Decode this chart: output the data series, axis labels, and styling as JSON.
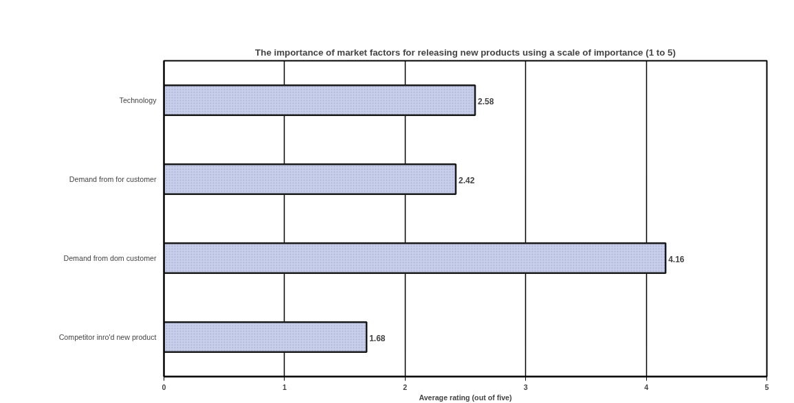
{
  "chart_data": {
    "type": "bar",
    "orientation": "horizontal",
    "title": "The importance of market factors for releasing new products using a scale of importance (1 to 5)",
    "xlabel": "Average rating (out of five)",
    "categories": [
      "Technology",
      "Demand from for customer",
      "Demand from dom customer",
      "Competitor inro'd new product"
    ],
    "values": [
      2.58,
      2.42,
      4.16,
      1.68
    ],
    "color": "#c9cfe9",
    "data_labels": true,
    "xlim": [
      0,
      5
    ],
    "xticks": [
      0,
      1,
      2,
      3,
      4,
      5
    ],
    "grid": "x"
  }
}
